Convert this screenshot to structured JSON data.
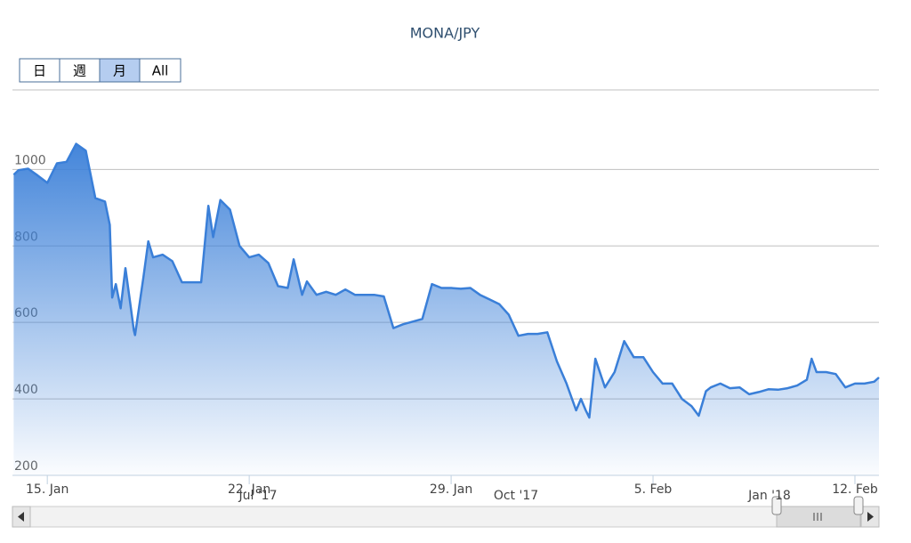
{
  "chart_data": {
    "type": "area",
    "title": "MONA/JPY",
    "range_buttons": [
      "日",
      "週",
      "月",
      "All"
    ],
    "selected_button": 2,
    "series": [
      {
        "name": "MONA/JPY",
        "color": "#3a7fd8",
        "x": [
          "2018-01-13T20:00",
          "2018-01-14T00:00",
          "2018-01-14T08:00",
          "2018-01-14T16:00",
          "2018-01-15T00:00",
          "2018-01-15T08:00",
          "2018-01-15T16:00",
          "2018-01-16T00:00",
          "2018-01-16T08:00",
          "2018-01-16T16:00",
          "2018-01-17T00:00",
          "2018-01-17T04:00",
          "2018-01-17T06:00",
          "2018-01-17T09:00",
          "2018-01-17T13:00",
          "2018-01-17T17:00",
          "2018-01-17T21:00",
          "2018-01-18T00:00",
          "2018-01-18T01:00",
          "2018-01-18T08:00",
          "2018-01-18T12:00",
          "2018-01-18T16:00",
          "2018-01-19T00:00",
          "2018-01-19T08:00",
          "2018-01-19T16:00",
          "2018-01-20T00:00",
          "2018-01-20T08:00",
          "2018-01-20T14:00",
          "2018-01-20T18:00",
          "2018-01-21T00:00",
          "2018-01-21T08:00",
          "2018-01-21T16:00",
          "2018-01-22T00:00",
          "2018-01-22T08:00",
          "2018-01-22T16:00",
          "2018-01-23T00:00",
          "2018-01-23T08:00",
          "2018-01-23T13:00",
          "2018-01-23T20:00",
          "2018-01-24T00:00",
          "2018-01-24T08:00",
          "2018-01-24T16:00",
          "2018-01-25T00:00",
          "2018-01-25T08:00",
          "2018-01-25T16:00",
          "2018-01-26T00:00",
          "2018-01-26T08:00",
          "2018-01-26T16:00",
          "2018-01-27T00:00",
          "2018-01-27T08:00",
          "2018-01-27T16:00",
          "2018-01-28T00:00",
          "2018-01-28T08:00",
          "2018-01-28T16:00",
          "2018-01-29T00:00",
          "2018-01-29T08:00",
          "2018-01-29T16:00",
          "2018-01-30T00:00",
          "2018-01-30T08:00",
          "2018-01-30T16:00",
          "2018-01-31T00:00",
          "2018-01-31T08:00",
          "2018-01-31T16:00",
          "2018-02-01T00:00",
          "2018-02-01T08:00",
          "2018-02-01T16:00",
          "2018-02-02T00:00",
          "2018-02-02T08:00",
          "2018-02-02T12:00",
          "2018-02-02T16:00",
          "2018-02-02T19:00",
          "2018-02-03T00:00",
          "2018-02-03T08:00",
          "2018-02-03T16:00",
          "2018-02-04T00:00",
          "2018-02-04T08:00",
          "2018-02-04T16:00",
          "2018-02-05T00:00",
          "2018-02-05T08:00",
          "2018-02-05T16:00",
          "2018-02-06T00:00",
          "2018-02-06T08:00",
          "2018-02-06T14:00",
          "2018-02-06T20:00",
          "2018-02-07T00:00",
          "2018-02-07T08:00",
          "2018-02-07T16:00",
          "2018-02-08T00:00",
          "2018-02-08T08:00",
          "2018-02-08T16:00",
          "2018-02-09T00:00",
          "2018-02-09T08:00",
          "2018-02-09T16:00",
          "2018-02-10T00:00",
          "2018-02-10T08:00",
          "2018-02-10T12:00",
          "2018-02-10T16:00",
          "2018-02-11T00:00",
          "2018-02-11T08:00",
          "2018-02-11T16:00",
          "2018-02-12T00:00",
          "2018-02-12T08:00",
          "2018-02-12T16:00",
          "2018-02-12T20:00"
        ],
        "values": [
          986,
          998,
          1002,
          984,
          965,
          1016,
          1020,
          1067,
          1049,
          925,
          916,
          855,
          665,
          700,
          637,
          742,
          650,
          580,
          567,
          718,
          812,
          770,
          777,
          760,
          705,
          705,
          705,
          905,
          823,
          920,
          895,
          800,
          770,
          777,
          755,
          695,
          690,
          765,
          672,
          707,
          672,
          680,
          672,
          686,
          672,
          672,
          672,
          668,
          585,
          595,
          602,
          609,
          700,
          690,
          690,
          688,
          690,
          672,
          660,
          648,
          620,
          565,
          570,
          570,
          574,
          498,
          440,
          370,
          400,
          370,
          351,
          505,
          430,
          470,
          551,
          509,
          509,
          470,
          440,
          440,
          400,
          381,
          356,
          420,
          430,
          440,
          428,
          430,
          412,
          418,
          425,
          424,
          428,
          435,
          450,
          505,
          470,
          470,
          465,
          430,
          440,
          440,
          445,
          456
        ]
      }
    ],
    "xlim": [
      "2018-01-13T19:00",
      "2018-02-12T20:00"
    ],
    "xticks": [
      {
        "value": "2018-01-15T00:00",
        "label": "15. Jan"
      },
      {
        "value": "2018-01-22T00:00",
        "label": "22. Jan"
      },
      {
        "value": "2018-01-29T00:00",
        "label": "29. Jan"
      },
      {
        "value": "2018-02-05T00:00",
        "label": "5. Feb"
      },
      {
        "value": "2018-02-12T00:00",
        "label": "12. Feb"
      }
    ],
    "ylim": [
      200,
      1208
    ],
    "yticks": [
      200,
      400,
      600,
      800,
      1000
    ],
    "grid": true,
    "navigator_labels": [
      "Jul '17",
      "Oct '17",
      "Jan '18"
    ]
  }
}
